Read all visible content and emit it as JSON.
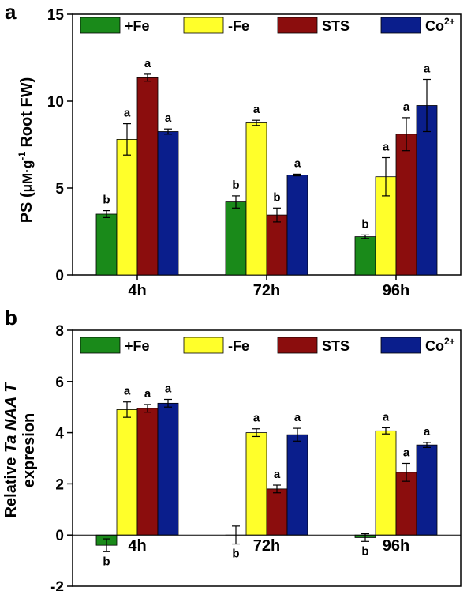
{
  "chart_data": [
    {
      "panel": "a",
      "type": "bar",
      "categories": [
        "4h",
        "72h",
        "96h"
      ],
      "ylabel": "PS (μM·g-1 Root FW)",
      "ylabel_parts": [
        "PS (",
        "μM·g",
        "-1",
        " Root FW)"
      ],
      "ylim": [
        0,
        15
      ],
      "yticks": [
        "0",
        "5",
        "10",
        "15"
      ],
      "legend_position": "top",
      "series": [
        {
          "name": "+Fe",
          "color": "#1a8a1a",
          "values": [
            3.5,
            4.2,
            2.2
          ],
          "errors": [
            0.2,
            0.35,
            0.1
          ],
          "sig": [
            "b",
            "b",
            "b"
          ]
        },
        {
          "name": "-Fe",
          "color": "#ffff2a",
          "values": [
            7.8,
            8.75,
            5.65
          ],
          "errors": [
            0.9,
            0.15,
            1.1
          ],
          "sig": [
            "a",
            "a",
            "a"
          ]
        },
        {
          "name": "STS",
          "color": "#8b0d0d",
          "values": [
            11.35,
            3.45,
            8.1
          ],
          "errors": [
            0.2,
            0.4,
            0.95
          ],
          "sig": [
            "a",
            "b",
            "a"
          ]
        },
        {
          "name": "Co2+",
          "name_parts": [
            "Co",
            "2+"
          ],
          "color": "#0a1e8c",
          "values": [
            8.25,
            5.75,
            9.75
          ],
          "errors": [
            0.15,
            0.05,
            1.5
          ],
          "sig": [
            "a",
            "a",
            "a"
          ]
        }
      ]
    },
    {
      "panel": "b",
      "type": "bar",
      "categories": [
        "4h",
        "72h",
        "96h"
      ],
      "ylabel": "Relative TaNAAT expresion",
      "ylabel_line1_parts": [
        "Relative ",
        "Ta NAA T"
      ],
      "ylabel_line2": "expresion",
      "ylim": [
        -2,
        8
      ],
      "yticks": [
        "-2",
        "0",
        "2",
        "4",
        "6",
        "8"
      ],
      "legend_position": "top",
      "series": [
        {
          "name": "+Fe",
          "color": "#1a8a1a",
          "values": [
            -0.4,
            0,
            -0.1
          ],
          "errors": [
            0.25,
            0.35,
            0.15
          ],
          "sig": [
            "b",
            "b",
            "b"
          ]
        },
        {
          "name": "-Fe",
          "color": "#ffff2a",
          "values": [
            4.9,
            4.0,
            4.07
          ],
          "errors": [
            0.3,
            0.15,
            0.12
          ],
          "sig": [
            "a",
            "a",
            "a"
          ]
        },
        {
          "name": "STS",
          "color": "#8b0d0d",
          "values": [
            4.95,
            1.8,
            2.45
          ],
          "errors": [
            0.15,
            0.15,
            0.35
          ],
          "sig": [
            "a",
            "a",
            "a"
          ]
        },
        {
          "name": "Co2+",
          "name_parts": [
            "Co",
            "2+"
          ],
          "color": "#0a1e8c",
          "values": [
            5.15,
            3.92,
            3.52
          ],
          "errors": [
            0.15,
            0.25,
            0.1
          ],
          "sig": [
            "a",
            "a",
            "a"
          ]
        }
      ]
    }
  ]
}
